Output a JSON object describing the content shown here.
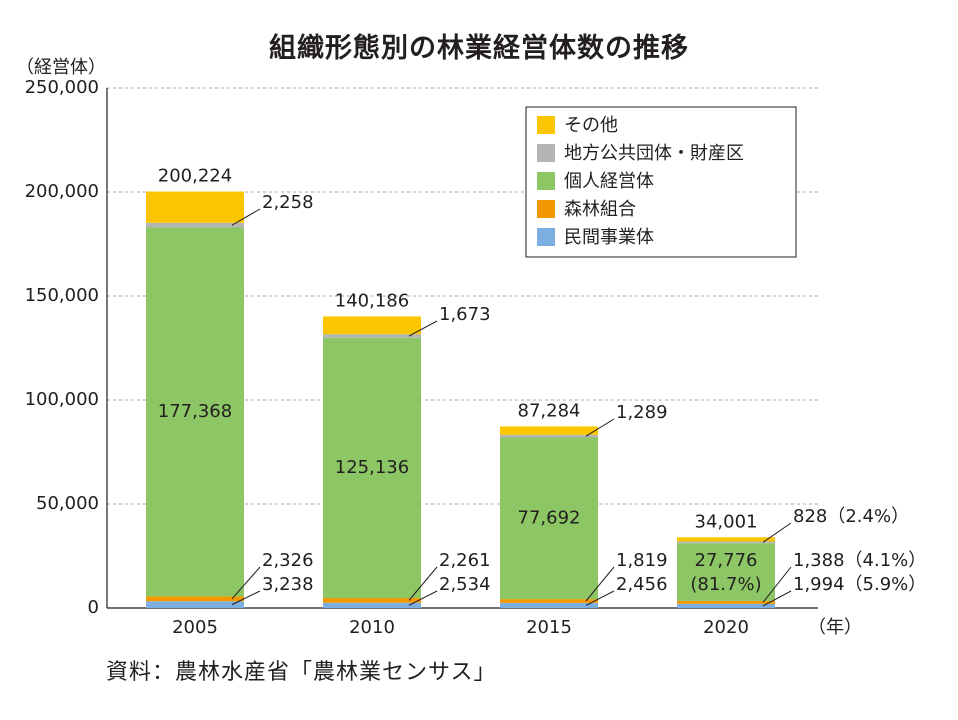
{
  "chart_data": {
    "type": "bar",
    "stacked": true,
    "title": "組織形態別の林業経営体数の推移",
    "ylabel": "（経営体）",
    "xlabel": "（年）",
    "ylim": [
      0,
      250000
    ],
    "yticks": [
      {
        "value": 0,
        "label": "0"
      },
      {
        "value": 50000,
        "label": "50,000"
      },
      {
        "value": 100000,
        "label": "100,000"
      },
      {
        "value": 150000,
        "label": "150,000"
      },
      {
        "value": 200000,
        "label": "200,000"
      },
      {
        "value": 250000,
        "label": "250,000"
      }
    ],
    "grid": true,
    "legend_position": "top-right",
    "categories": [
      "2005",
      "2010",
      "2015",
      "2020"
    ],
    "series": [
      {
        "name": "民間事業体",
        "color": "#7daee0",
        "values": [
          3238,
          2534,
          2456,
          1994
        ]
      },
      {
        "name": "森林組合",
        "color": "#f39800",
        "values": [
          2326,
          2261,
          1819,
          1388
        ]
      },
      {
        "name": "個人経営体",
        "color": "#8cc665",
        "values": [
          177368,
          125136,
          77692,
          27776
        ]
      },
      {
        "name": "地方公共団体・財産区",
        "color": "#b5b5b5",
        "values": [
          2258,
          1673,
          1289,
          828
        ]
      },
      {
        "name": "その他",
        "color": "#fbc600",
        "values": [
          15034,
          8582,
          4028,
          2015
        ]
      }
    ],
    "legend_order": [
      "その他",
      "地方公共団体・財産区",
      "個人経営体",
      "森林組合",
      "民間事業体"
    ],
    "totals": [
      "200,224",
      "140,186",
      "87,284",
      "34,001"
    ],
    "labels": {
      "individual": [
        "177,368",
        "125,136",
        "77,692",
        "27,776"
      ],
      "individual_pct_2020": "(81.7%)",
      "local_gov": [
        "2,258",
        "1,673",
        "1,289",
        "828（2.4%）"
      ],
      "forest_coop": [
        "2,326",
        "2,261",
        "1,819",
        "1,388（4.1%）"
      ],
      "private": [
        "3,238",
        "2,534",
        "2,456",
        "1,994（5.9%）"
      ]
    },
    "source": "資料：農林水産省「農林業センサス」"
  }
}
